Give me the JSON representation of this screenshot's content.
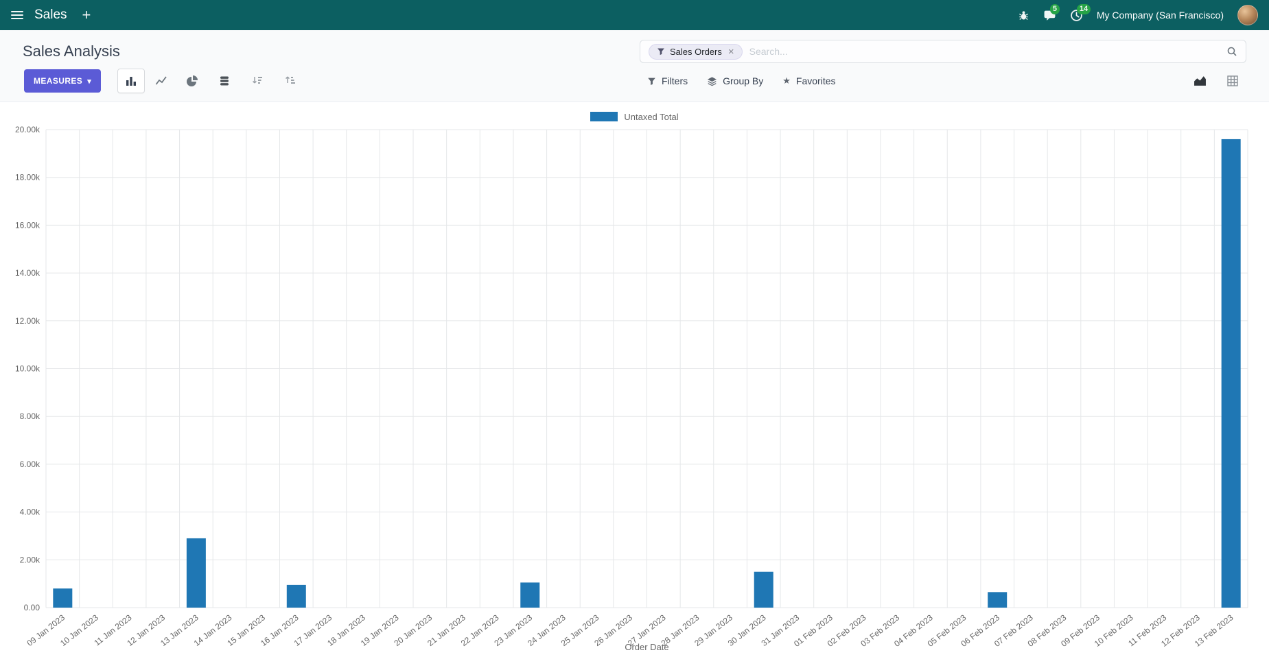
{
  "navbar": {
    "app_name": "Sales",
    "company_name": "My Company (San Francisco)",
    "messages_badge": "5",
    "activities_badge": "14"
  },
  "icons": {
    "plus": "+",
    "caret_down": "▾",
    "star": "★",
    "close": "×"
  },
  "control_panel": {
    "title": "Sales Analysis",
    "measures_button": "MEASURES",
    "search": {
      "facet_label": "Sales Orders",
      "placeholder": "Search..."
    },
    "filters_button": "Filters",
    "group_by_button": "Group By",
    "favorites_button": "Favorites"
  },
  "colors": {
    "navbar_bg": "#0c5f61",
    "primary_button": "#5b5bd6",
    "bar_color": "#1f77b4",
    "badge_green": "#28a745",
    "grid": "#e5e7e9",
    "axis_text": "#666666"
  },
  "chart_data": {
    "type": "bar",
    "title": "",
    "xlabel": "Order Date",
    "ylabel": "",
    "ylim": [
      0,
      20000
    ],
    "grid": true,
    "legend_position": "top",
    "y_tick_labels": [
      "0.00",
      "2.00k",
      "4.00k",
      "6.00k",
      "8.00k",
      "10.00k",
      "12.00k",
      "14.00k",
      "16.00k",
      "18.00k",
      "20.00k"
    ],
    "categories": [
      "09 Jan 2023",
      "10 Jan 2023",
      "11 Jan 2023",
      "12 Jan 2023",
      "13 Jan 2023",
      "14 Jan 2023",
      "15 Jan 2023",
      "16 Jan 2023",
      "17 Jan 2023",
      "18 Jan 2023",
      "19 Jan 2023",
      "20 Jan 2023",
      "21 Jan 2023",
      "22 Jan 2023",
      "23 Jan 2023",
      "24 Jan 2023",
      "25 Jan 2023",
      "26 Jan 2023",
      "27 Jan 2023",
      "28 Jan 2023",
      "29 Jan 2023",
      "30 Jan 2023",
      "31 Jan 2023",
      "01 Feb 2023",
      "02 Feb 2023",
      "03 Feb 2023",
      "04 Feb 2023",
      "05 Feb 2023",
      "06 Feb 2023",
      "07 Feb 2023",
      "08 Feb 2023",
      "09 Feb 2023",
      "10 Feb 2023",
      "11 Feb 2023",
      "12 Feb 2023",
      "13 Feb 2023"
    ],
    "series": [
      {
        "name": "Untaxed Total",
        "color": "#1f77b4",
        "values": [
          800,
          0,
          0,
          0,
          2900,
          0,
          0,
          950,
          0,
          0,
          0,
          0,
          0,
          0,
          1050,
          0,
          0,
          0,
          0,
          0,
          0,
          1500,
          0,
          0,
          0,
          0,
          0,
          0,
          650,
          0,
          0,
          0,
          0,
          0,
          0,
          19600
        ]
      }
    ]
  }
}
